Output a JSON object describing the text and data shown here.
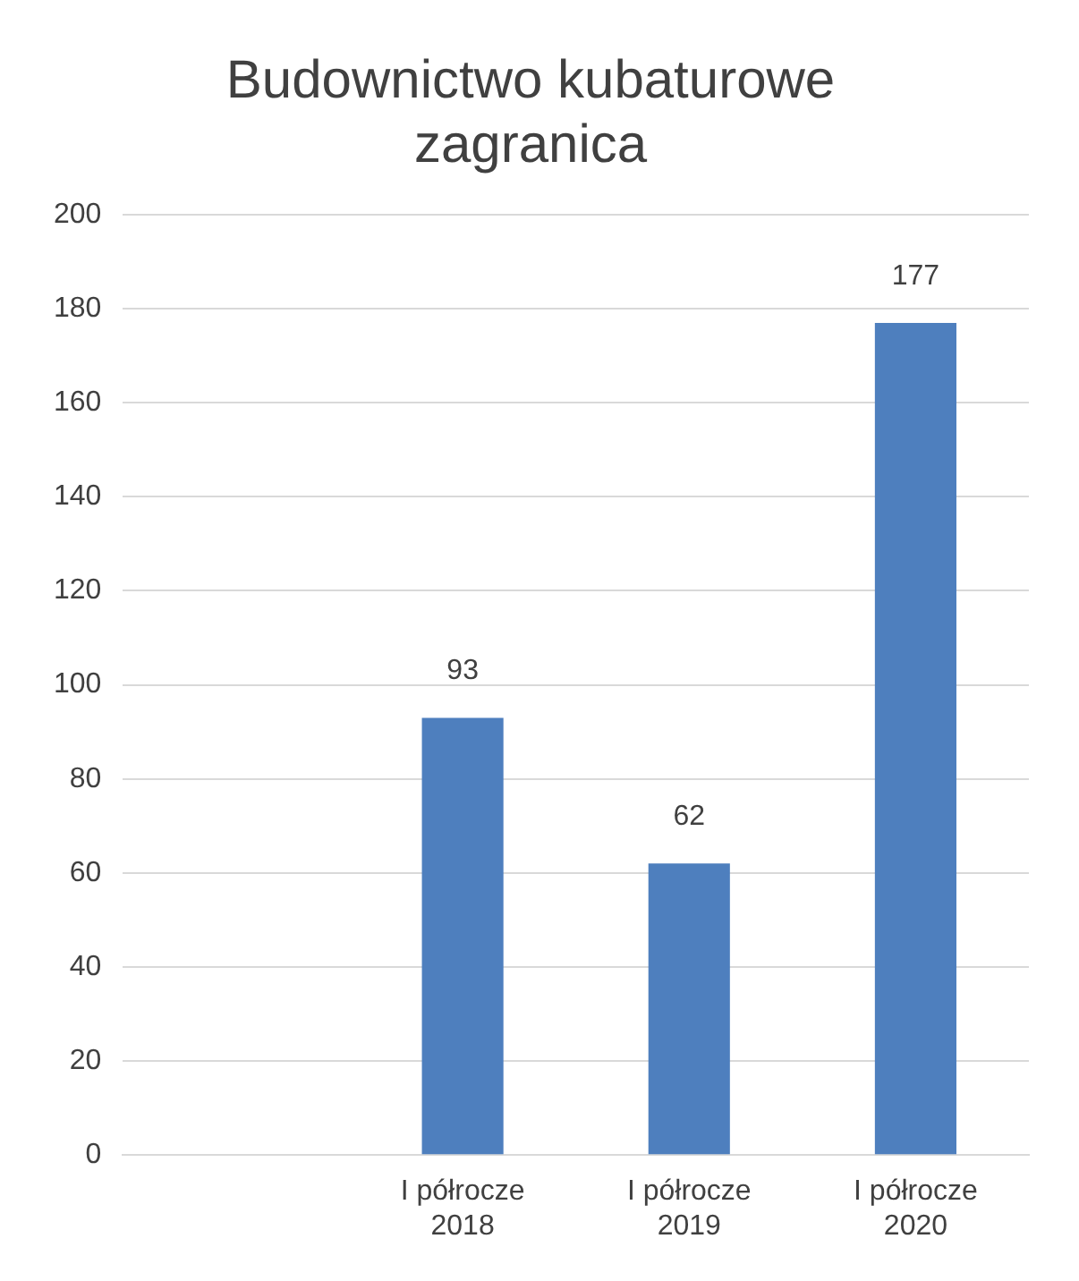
{
  "chart_data": {
    "type": "bar",
    "title": "Budownictwo kubaturowe zagranica",
    "categories": [
      null,
      "I półrocze 2018",
      "I półrocze 2019",
      "I półrocze 2020"
    ],
    "values": [
      null,
      93,
      62,
      177
    ],
    "color": "#4e7fbe",
    "ylim": [
      0,
      200
    ],
    "yticks": [
      0,
      20,
      40,
      60,
      80,
      100,
      120,
      140,
      160,
      180,
      200
    ],
    "grid": "y",
    "data_labels": true,
    "legend": false
  }
}
